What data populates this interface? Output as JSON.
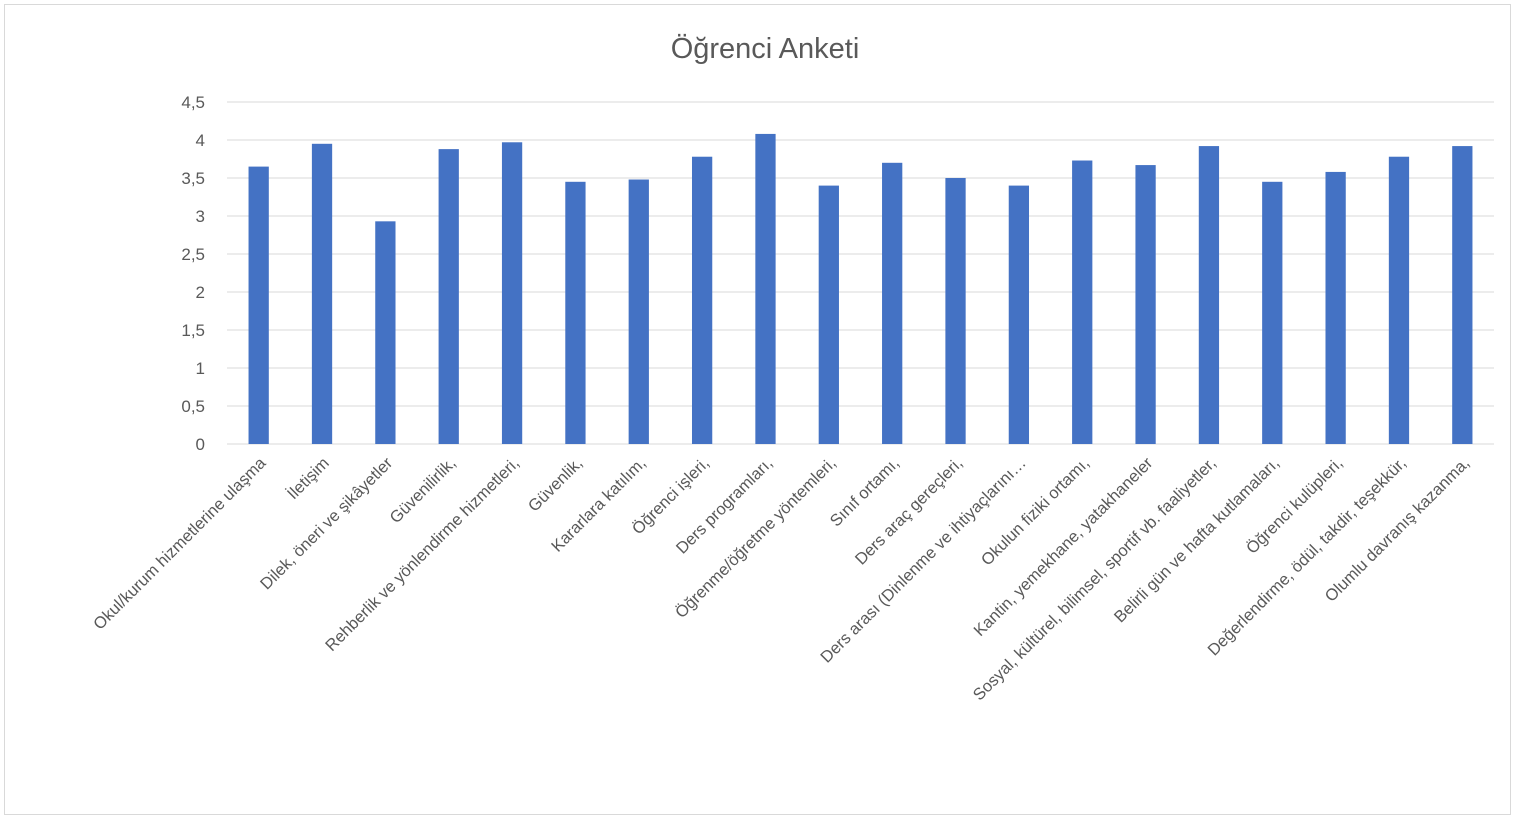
{
  "chart_data": {
    "type": "bar",
    "title": "Öğrenci Anketi",
    "xlabel": "",
    "ylabel": "",
    "ylim": [
      0,
      4.5
    ],
    "yticks": [
      "0",
      "0,5",
      "1",
      "1,5",
      "2",
      "2,5",
      "3",
      "3,5",
      "4",
      "4,5"
    ],
    "grid": true,
    "legend": "none",
    "bar_color": "#4472C4",
    "categories": [
      "Okul/kurum hizmetlerine ulaşma",
      "İletişim",
      "Dilek, öneri ve şikâyetler",
      "Güvenilirlik,",
      "Rehberlik ve yönlendirme hizmetleri,",
      "Güvenlik,",
      "Kararlara katılım,",
      "Öğrenci işleri,",
      "Ders programları,",
      "Öğrenme/öğretme yöntemleri,",
      "Sınıf ortamı,",
      "Ders araç gereçleri,",
      "Ders arası (Dinlenme ve ihtiyaçlarını…",
      "Okulun fiziki ortamı,",
      "Kantin, yemekhane, yatakhaneler",
      "Sosyal, kültürel, bilimsel, sportif vb. faaliyetler,",
      "Belirli gün ve hafta kutlamaları,",
      "Öğrenci kulüpleri,",
      "Değerlendirme, ödül, takdir, teşekkür,",
      "Olumlu davranış kazanma,"
    ],
    "values": [
      3.65,
      3.95,
      2.93,
      3.88,
      3.97,
      3.45,
      3.48,
      3.78,
      4.08,
      3.4,
      3.7,
      3.5,
      3.4,
      3.73,
      3.67,
      3.92,
      3.45,
      3.58,
      3.78,
      3.92
    ]
  }
}
